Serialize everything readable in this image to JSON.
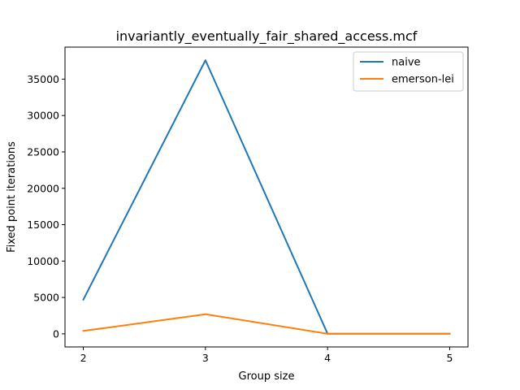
{
  "chart_data": {
    "type": "line",
    "title": "invariantly_eventually_fair_shared_access.mcf",
    "xlabel": "Group size",
    "ylabel": "Fixed point iterations",
    "x": [
      2,
      3,
      4,
      5
    ],
    "xlim": [
      1.85,
      5.15
    ],
    "ylim": [
      -1800,
      39400
    ],
    "xticks": [
      2,
      3,
      4,
      5
    ],
    "yticks": [
      0,
      5000,
      10000,
      15000,
      20000,
      25000,
      30000,
      35000
    ],
    "grid": false,
    "legend_position": "top-right",
    "series": [
      {
        "name": "naive",
        "color": "#1f77b4",
        "values": [
          4700,
          37600,
          20,
          20
        ]
      },
      {
        "name": "emerson-lei",
        "color": "#ff7f0e",
        "values": [
          400,
          2700,
          10,
          10
        ]
      }
    ]
  }
}
